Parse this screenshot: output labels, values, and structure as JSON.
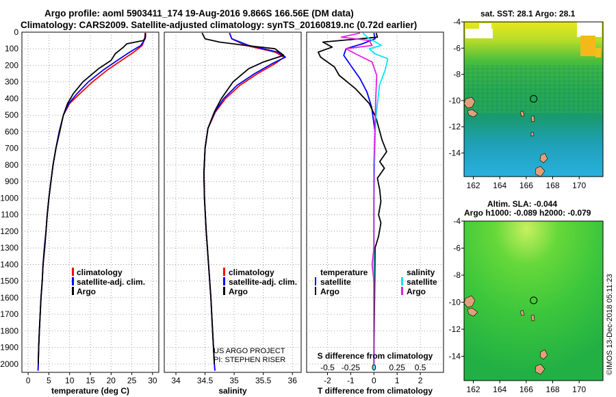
{
  "header": {
    "title_line1": "Argo profile: aoml 5903411_174 19-Aug-2016 9.866S 166.56E (DM data)",
    "title_line2": "Climatology: CARS2009. Satellite-adjusted climatology: synTS_20160819.nc (0.72d earlier)"
  },
  "colors": {
    "climatology": "#ff0000",
    "satellite": "#0000ff",
    "argo": "#000000",
    "sal_satellite": "#00e5ff",
    "sal_argo": "#e020e0",
    "land": "#e2a07a"
  },
  "chart_data": [
    {
      "type": "line",
      "name": "temperature-profile",
      "xlabel": "temperature (deg C)",
      "ylim": [
        2050,
        0
      ],
      "xlim": [
        -1.5,
        31.5
      ],
      "xticks": [
        "0",
        "5",
        "10",
        "15",
        "20",
        "25",
        "30"
      ],
      "xtick_values": [
        0,
        5,
        10,
        15,
        20,
        25,
        30
      ],
      "yticks": [
        "0",
        "100",
        "200",
        "300",
        "400",
        "500",
        "600",
        "700",
        "800",
        "900",
        "1000",
        "1100",
        "1200",
        "1300",
        "1400",
        "1500",
        "1600",
        "1700",
        "1800",
        "1900",
        "2000"
      ],
      "legend": [
        "climatology",
        "satellite-adj. clim.",
        "Argo"
      ],
      "series": [
        {
          "name": "climatology",
          "color": "#ff0000",
          "points": [
            [
              28.2,
              5
            ],
            [
              28.1,
              40
            ],
            [
              27.5,
              80
            ],
            [
              25.5,
              120
            ],
            [
              22.5,
              170
            ],
            [
              19,
              230
            ],
            [
              15.5,
              300
            ],
            [
              12.5,
              370
            ],
            [
              10,
              430
            ],
            [
              8.5,
              500
            ],
            [
              7.5,
              600
            ],
            [
              6.7,
              700
            ],
            [
              6,
              800
            ],
            [
              5.5,
              900
            ],
            [
              5,
              1000
            ],
            [
              4.6,
              1100
            ],
            [
              4.3,
              1200
            ],
            [
              4,
              1300
            ],
            [
              3.6,
              1400
            ],
            [
              3.4,
              1500
            ],
            [
              3.1,
              1600
            ],
            [
              2.9,
              1700
            ],
            [
              2.7,
              1800
            ],
            [
              2.55,
              1900
            ],
            [
              2.45,
              2000
            ],
            [
              2.4,
              2040
            ]
          ]
        },
        {
          "name": "satellite-adj. clim.",
          "color": "#0000ff",
          "points": [
            [
              28.3,
              5
            ],
            [
              28.2,
              40
            ],
            [
              27.2,
              80
            ],
            [
              24.5,
              120
            ],
            [
              21.5,
              170
            ],
            [
              18,
              230
            ],
            [
              14.5,
              300
            ],
            [
              11.8,
              370
            ],
            [
              9.8,
              430
            ],
            [
              8.5,
              500
            ],
            [
              7.5,
              600
            ],
            [
              6.7,
              700
            ],
            [
              6,
              800
            ],
            [
              5.5,
              900
            ],
            [
              5,
              1000
            ],
            [
              4.6,
              1100
            ],
            [
              4.3,
              1200
            ],
            [
              3.9,
              1300
            ],
            [
              3.6,
              1400
            ],
            [
              3.4,
              1500
            ],
            [
              3.1,
              1600
            ],
            [
              2.9,
              1700
            ],
            [
              2.7,
              1800
            ],
            [
              2.55,
              1900
            ],
            [
              2.45,
              2000
            ],
            [
              2.4,
              2040
            ]
          ]
        },
        {
          "name": "Argo",
          "color": "#000000",
          "points": [
            [
              28.3,
              5
            ],
            [
              28.3,
              30
            ],
            [
              27.8,
              50
            ],
            [
              23.8,
              70
            ],
            [
              23,
              90
            ],
            [
              21,
              130
            ],
            [
              20,
              170
            ],
            [
              17,
              220
            ],
            [
              13.2,
              300
            ],
            [
              10.9,
              370
            ],
            [
              9.5,
              430
            ],
            [
              8.5,
              500
            ],
            [
              7.6,
              600
            ],
            [
              6.7,
              700
            ],
            [
              6,
              800
            ],
            [
              5.5,
              900
            ],
            [
              5,
              1000
            ],
            [
              4.6,
              1100
            ],
            [
              4.3,
              1200
            ],
            [
              4,
              1300
            ],
            [
              3.6,
              1400
            ],
            [
              3.4,
              1500
            ],
            [
              3.1,
              1600
            ],
            [
              2.9,
              1700
            ],
            [
              2.7,
              1800
            ],
            [
              2.55,
              1900
            ],
            [
              2.45,
              2000
            ]
          ]
        }
      ]
    },
    {
      "type": "line",
      "name": "salinity-profile",
      "xlabel": "salinity",
      "ylim": [
        2050,
        0
      ],
      "xlim": [
        33.8,
        36.15
      ],
      "xticks": [
        "34",
        "34.5",
        "35",
        "35.5",
        "36"
      ],
      "xtick_values": [
        34,
        34.5,
        35,
        35.5,
        36
      ],
      "legend": [
        "climatology",
        "satellite-adj. clim.",
        "Argo"
      ],
      "annotation_line1": "US ARGO PROJECT",
      "annotation_line2": "PI: STEPHEN RISER",
      "series": [
        {
          "name": "climatology",
          "color": "#ff0000",
          "points": [
            [
              34.92,
              5
            ],
            [
              34.96,
              40
            ],
            [
              35.2,
              80
            ],
            [
              35.7,
              120
            ],
            [
              35.86,
              150
            ],
            [
              35.7,
              190
            ],
            [
              35.4,
              250
            ],
            [
              35.1,
              320
            ],
            [
              34.85,
              400
            ],
            [
              34.68,
              480
            ],
            [
              34.55,
              580
            ],
            [
              34.5,
              700
            ],
            [
              34.48,
              850
            ],
            [
              34.49,
              1000
            ],
            [
              34.52,
              1200
            ],
            [
              34.56,
              1400
            ],
            [
              34.6,
              1600
            ],
            [
              34.63,
              1800
            ],
            [
              34.66,
              2000
            ],
            [
              34.67,
              2040
            ]
          ]
        },
        {
          "name": "satellite-adj. clim.",
          "color": "#0000ff",
          "points": [
            [
              34.92,
              5
            ],
            [
              34.96,
              40
            ],
            [
              35.25,
              80
            ],
            [
              35.75,
              120
            ],
            [
              35.88,
              150
            ],
            [
              35.65,
              190
            ],
            [
              35.35,
              250
            ],
            [
              35.05,
              320
            ],
            [
              34.82,
              400
            ],
            [
              34.67,
              480
            ],
            [
              34.55,
              580
            ],
            [
              34.5,
              700
            ],
            [
              34.48,
              850
            ],
            [
              34.49,
              1000
            ],
            [
              34.52,
              1200
            ],
            [
              34.56,
              1400
            ],
            [
              34.6,
              1600
            ],
            [
              34.63,
              1800
            ],
            [
              34.66,
              2000
            ],
            [
              34.67,
              2040
            ]
          ]
        },
        {
          "name": "Argo",
          "color": "#000000",
          "points": [
            [
              34.45,
              5
            ],
            [
              34.5,
              40
            ],
            [
              34.75,
              60
            ],
            [
              35.2,
              80
            ],
            [
              35.7,
              100
            ],
            [
              35.85,
              140
            ],
            [
              35.5,
              180
            ],
            [
              35.25,
              220
            ],
            [
              34.98,
              300
            ],
            [
              34.78,
              400
            ],
            [
              34.66,
              480
            ],
            [
              34.55,
              580
            ],
            [
              34.5,
              700
            ],
            [
              34.48,
              850
            ],
            [
              34.49,
              1000
            ],
            [
              34.52,
              1200
            ],
            [
              34.56,
              1400
            ],
            [
              34.6,
              1600
            ],
            [
              34.63,
              1800
            ],
            [
              34.66,
              2000
            ]
          ]
        }
      ]
    },
    {
      "type": "line",
      "name": "difference-from-climatology",
      "xlabel": "T difference from climatology",
      "xlim": [
        -2.9,
        3.0
      ],
      "xticks": [
        "-2",
        "-1",
        "0",
        "1",
        "2"
      ],
      "xtick_values": [
        -2,
        -1,
        0,
        1,
        2
      ],
      "top_xlabel": "S difference from climatology",
      "top_xticks": [
        "-0.5",
        "-0.25",
        "0",
        "0.25",
        "0.5"
      ],
      "top_xtick_values": [
        -0.5,
        -0.25,
        0,
        0.25,
        0.5
      ],
      "top_scale_per_T": 0.25,
      "legend_left_title": "temperature",
      "legend_left": [
        "satellite",
        "Argo"
      ],
      "legend_right_title": "salinity",
      "legend_right": [
        "satellite",
        "Argo"
      ],
      "series": [
        {
          "name": "T satellite",
          "color": "#0000ff",
          "axis": "T",
          "points": [
            [
              0,
              5
            ],
            [
              0.05,
              40
            ],
            [
              -0.5,
              70
            ],
            [
              -1.2,
              100
            ],
            [
              -1.3,
              140
            ],
            [
              -1,
              200
            ],
            [
              -0.6,
              280
            ],
            [
              -0.3,
              360
            ],
            [
              -0.1,
              450
            ],
            [
              0.05,
              600
            ],
            [
              0.02,
              800
            ],
            [
              0,
              1000
            ],
            [
              0,
              2040
            ]
          ]
        },
        {
          "name": "T Argo",
          "color": "#000000",
          "axis": "T",
          "points": [
            [
              0.1,
              5
            ],
            [
              0.15,
              30
            ],
            [
              -2.2,
              60
            ],
            [
              -1.8,
              90
            ],
            [
              -2.4,
              120
            ],
            [
              -2.3,
              150
            ],
            [
              -1.7,
              210
            ],
            [
              -1.5,
              260
            ],
            [
              -0.8,
              340
            ],
            [
              -0.2,
              430
            ],
            [
              0.1,
              520
            ],
            [
              0.35,
              650
            ],
            [
              0.55,
              720
            ],
            [
              0.25,
              780
            ],
            [
              0.45,
              820
            ],
            [
              0.15,
              880
            ],
            [
              0.25,
              950
            ],
            [
              0.3,
              1020
            ],
            [
              0.2,
              1100
            ],
            [
              0.3,
              1150
            ],
            [
              0.2,
              1230
            ],
            [
              0.05,
              1300
            ],
            [
              0,
              2000
            ]
          ]
        },
        {
          "name": "S satellite",
          "color": "#00e5ff",
          "axis": "S",
          "points": [
            [
              -0.12,
              5
            ],
            [
              -0.05,
              40
            ],
            [
              0.02,
              60
            ],
            [
              0.08,
              80
            ],
            [
              -0.05,
              100
            ],
            [
              0.01,
              130
            ],
            [
              0.15,
              160
            ],
            [
              0.12,
              230
            ],
            [
              0.06,
              320
            ],
            [
              0.04,
              420
            ],
            [
              0.02,
              520
            ],
            [
              0.01,
              700
            ],
            [
              0,
              900
            ],
            [
              0,
              2040
            ]
          ]
        },
        {
          "name": "S Argo",
          "color": "#e020e0",
          "axis": "S",
          "points": [
            [
              -0.15,
              5
            ],
            [
              -0.35,
              30
            ],
            [
              -0.05,
              50
            ],
            [
              -0.02,
              80
            ],
            [
              -0.3,
              100
            ],
            [
              -0.2,
              130
            ],
            [
              -0.02,
              180
            ],
            [
              0.03,
              260
            ],
            [
              0.02,
              400
            ],
            [
              0.01,
              600
            ],
            [
              0,
              800
            ],
            [
              0,
              1300
            ],
            [
              -0.02,
              1400
            ],
            [
              0,
              1500
            ],
            [
              0,
              2000
            ]
          ]
        }
      ]
    },
    {
      "type": "heatmap",
      "name": "sst-map",
      "title": "sat. SST: 28.1  Argo: 28.1",
      "xticks": [
        "162",
        "164",
        "166",
        "168",
        "170"
      ],
      "xtick_values": [
        162,
        164,
        166,
        168,
        170
      ],
      "yticks": [
        "-4",
        "-6",
        "-8",
        "-10",
        "-12",
        "-14"
      ],
      "ytick_values": [
        -4,
        -6,
        -8,
        -10,
        -12,
        -14
      ],
      "xlim": [
        161.3,
        171.8
      ],
      "ylim": [
        -15.8,
        -4
      ],
      "float_position": [
        166.56,
        -9.866
      ]
    },
    {
      "type": "heatmap",
      "name": "sla-map",
      "title_line1": "Altim. SLA: -0.044",
      "title_line2": "Argo h1000: -0.089  h2000: -0.079",
      "xticks": [
        "162",
        "164",
        "166",
        "168",
        "170"
      ],
      "xtick_values": [
        162,
        164,
        166,
        168,
        170
      ],
      "yticks": [
        "-4",
        "-6",
        "-8",
        "-10",
        "-12",
        "-14"
      ],
      "ytick_values": [
        -4,
        -6,
        -8,
        -10,
        -12,
        -14
      ],
      "xlim": [
        161.3,
        171.8
      ],
      "ylim": [
        -15.8,
        -4
      ],
      "float_position": [
        166.56,
        -9.866
      ]
    }
  ],
  "footer": {
    "credit": "©IMOS 13-Dec-2018 05:11:23"
  }
}
